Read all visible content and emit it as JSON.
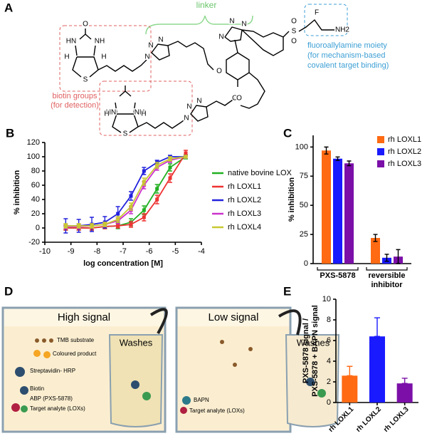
{
  "panel_a": {
    "label": "A",
    "linker": "linker",
    "moiety": [
      "fluoroallylamine moiety",
      "(for mechanism-based",
      "covalent target binding)"
    ],
    "biotin": [
      "biotin groups",
      "(for detection)"
    ],
    "atoms": [
      "O",
      "HN",
      "NH",
      "H",
      "H",
      "S",
      "N",
      "N",
      "N",
      "O",
      "N",
      "N",
      "N",
      "S",
      "O",
      "O",
      "F",
      "NH2",
      "O",
      "HN",
      "NH",
      "H",
      "H",
      "S",
      "N",
      "N",
      "N",
      "O"
    ]
  },
  "chart_data": [
    {
      "type": "line",
      "label": "B",
      "xlabel": "log concentration [M]",
      "ylabel": "% inhibition",
      "xlim": [
        -10,
        -4
      ],
      "xticks": [
        -10,
        -9,
        -8,
        -7,
        -6,
        -5,
        -4
      ],
      "ylim": [
        -20,
        120
      ],
      "yticks": [
        -20,
        0,
        20,
        40,
        60,
        80,
        100,
        120
      ],
      "x": [
        -9.2,
        -8.7,
        -8.2,
        -7.7,
        -7.2,
        -6.7,
        -6.2,
        -5.7,
        -5.2,
        -4.6
      ],
      "series": [
        {
          "name": "native bovine LOX",
          "color": "#22b022",
          "values": [
            0,
            0,
            0,
            2,
            3,
            8,
            25,
            55,
            85,
            100
          ],
          "errors": [
            3,
            3,
            3,
            3,
            4,
            5,
            6,
            6,
            5,
            3
          ]
        },
        {
          "name": "rh LOXL1",
          "color": "#ee3333",
          "values": [
            0,
            0,
            0,
            2,
            3,
            5,
            15,
            40,
            70,
            105
          ],
          "errors": [
            3,
            3,
            3,
            3,
            3,
            4,
            5,
            6,
            6,
            4
          ]
        },
        {
          "name": "rh LOXL2",
          "color": "#2222dd",
          "values": [
            3,
            3,
            5,
            8,
            20,
            45,
            80,
            92,
            100,
            100
          ],
          "errors": [
            10,
            9,
            10,
            8,
            10,
            6,
            5,
            3,
            2,
            2
          ]
        },
        {
          "name": "rh LOXL3",
          "color": "#cc33cc",
          "values": [
            2,
            2,
            3,
            5,
            10,
            25,
            60,
            85,
            95,
            100
          ],
          "errors": [
            3,
            3,
            3,
            3,
            4,
            5,
            5,
            4,
            3,
            2
          ]
        },
        {
          "name": "rh LOXL4",
          "color": "#c8c832",
          "values": [
            3,
            3,
            3,
            5,
            12,
            30,
            65,
            88,
            97,
            100
          ],
          "errors": [
            3,
            3,
            3,
            3,
            4,
            5,
            5,
            4,
            3,
            2
          ]
        }
      ]
    },
    {
      "type": "grouped-bar",
      "label": "C",
      "ylabel": "% inhibition",
      "ylim": [
        0,
        110
      ],
      "yticks": [
        0,
        25,
        50,
        75,
        100
      ],
      "categories": [
        "PXS-5878",
        "reversible inhibitor"
      ],
      "series": [
        {
          "name": "rh LOXL1",
          "color": "#ff6a13",
          "values": [
            97,
            22
          ],
          "errors": [
            3,
            3
          ]
        },
        {
          "name": "rh LOXL2",
          "color": "#1a1aff",
          "values": [
            90,
            5
          ],
          "errors": [
            1.5,
            3
          ]
        },
        {
          "name": "rh LOXL3",
          "color": "#7b0fa8",
          "values": [
            86,
            6
          ],
          "errors": [
            2,
            6
          ]
        }
      ]
    },
    {
      "type": "bar",
      "label": "E",
      "ylabel": [
        "PXS-5878 signal /",
        "PXS-5878 + BAPN signal"
      ],
      "ylim": [
        0,
        10
      ],
      "yticks": [
        0,
        2,
        4,
        6,
        8,
        10
      ],
      "categories": [
        "rh LOXL1",
        "rh LOXL2",
        "rh LOXL3"
      ],
      "values": [
        2.6,
        6.4,
        1.85
      ],
      "errors": [
        0.9,
        1.8,
        0.5
      ],
      "colors": [
        "#ff6a13",
        "#1a1aff",
        "#7b0fa8"
      ]
    }
  ],
  "panel_d": {
    "label": "D",
    "left": {
      "title": "High signal",
      "washes": "Washes",
      "items": [
        "TMB substrate",
        "Coloured product",
        "Streptavidin- HRP",
        "Biotin",
        "ABP (PXS-5878)",
        "Target analyte (LOXs)"
      ]
    },
    "right": {
      "title": "Low signal",
      "washes": "Washes",
      "items": [
        "BAPN",
        "Target analyte (LOXs)"
      ]
    }
  }
}
